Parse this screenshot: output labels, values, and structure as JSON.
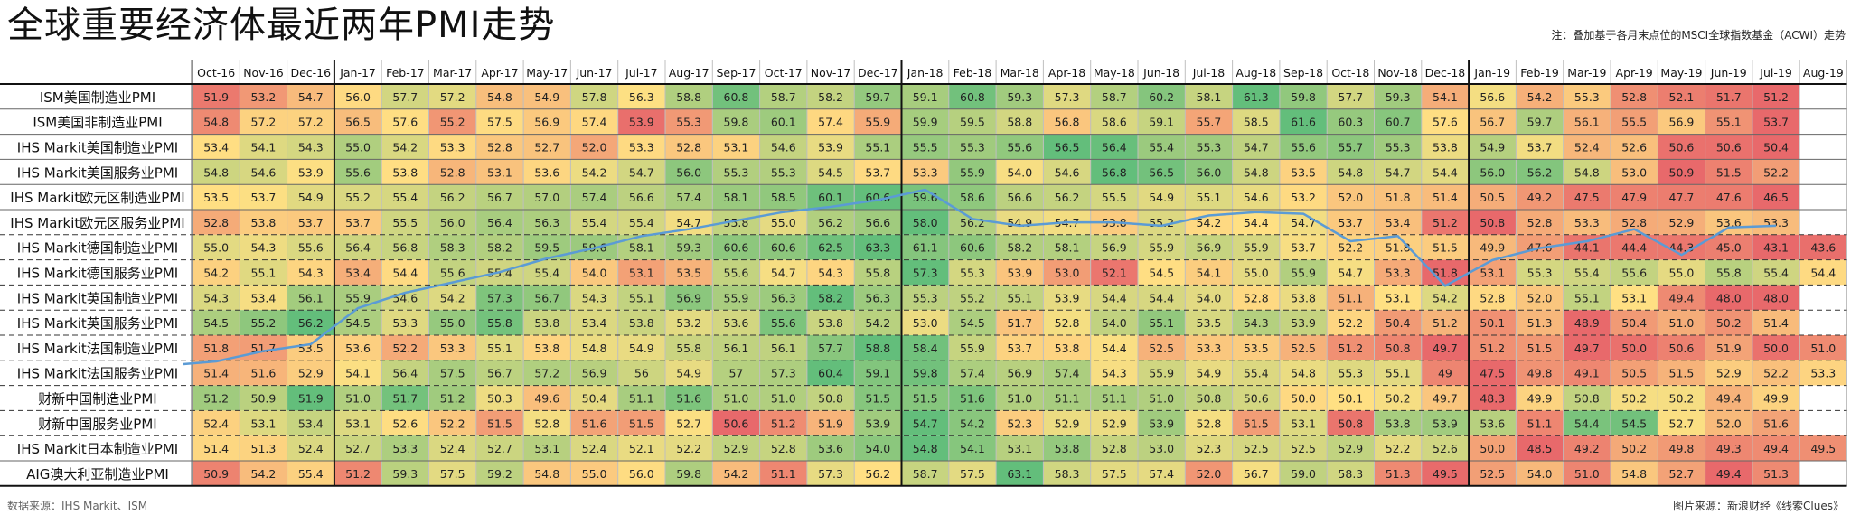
{
  "title": "全球重要经济体最近两年PMI走势",
  "note": "注：叠加基于各月末点位的MSCI全球指数基金（ACWI）走势",
  "source": "数据来源：IHS Markit、ISM",
  "credit": "图片来源：新浪财经《线索Clues》",
  "colors": {
    "low": "#e8696b",
    "mid": "#ffe083",
    "high": "#63be7b",
    "line": "#5b9bd5",
    "grid": "#bfbfbf"
  },
  "chart_data": {
    "type": "heatmap",
    "title": "全球重要经济体最近两年PMI走势",
    "columns": [
      "Oct-16",
      "Nov-16",
      "Dec-16",
      "Jan-17",
      "Feb-17",
      "Mar-17",
      "Apr-17",
      "May-17",
      "Jun-17",
      "Jul-17",
      "Aug-17",
      "Sep-17",
      "Oct-17",
      "Nov-17",
      "Dec-17",
      "Jan-18",
      "Feb-18",
      "Mar-18",
      "Apr-18",
      "May-18",
      "Jun-18",
      "Jul-18",
      "Aug-18",
      "Sep-18",
      "Oct-18",
      "Nov-18",
      "Dec-18",
      "Jan-19",
      "Feb-19",
      "Mar-19",
      "Apr-19",
      "May-19",
      "Jun-19",
      "Jul-19",
      "Aug-19"
    ],
    "rows": [
      {
        "name": "ISM美国制造业PMI",
        "values": [
          "51.9",
          "53.2",
          "54.7",
          "56.0",
          "57.7",
          "57.2",
          "54.8",
          "54.9",
          "57.8",
          "56.3",
          "58.8",
          "60.8",
          "58.7",
          "58.2",
          "59.7",
          "59.1",
          "60.8",
          "59.3",
          "57.3",
          "58.7",
          "60.2",
          "58.1",
          "61.3",
          "59.8",
          "57.7",
          "59.3",
          "54.1",
          "56.6",
          "54.2",
          "55.3",
          "52.8",
          "52.1",
          "51.7",
          "51.2",
          ""
        ]
      },
      {
        "name": "ISM美国非制造业PMI",
        "values": [
          "54.8",
          "57.2",
          "57.2",
          "56.5",
          "57.6",
          "55.2",
          "57.5",
          "56.9",
          "57.4",
          "53.9",
          "55.3",
          "59.8",
          "60.1",
          "57.4",
          "55.9",
          "59.9",
          "59.5",
          "58.8",
          "56.8",
          "58.6",
          "59.1",
          "55.7",
          "58.5",
          "61.6",
          "60.3",
          "60.7",
          "57.6",
          "56.7",
          "59.7",
          "56.1",
          "55.5",
          "56.9",
          "55.1",
          "53.7",
          ""
        ]
      },
      {
        "name": "IHS Markit美国制造业PMI",
        "values": [
          "53.4",
          "54.1",
          "54.3",
          "55.0",
          "54.2",
          "53.3",
          "52.8",
          "52.7",
          "52.0",
          "53.3",
          "52.8",
          "53.1",
          "54.6",
          "53.9",
          "55.1",
          "55.5",
          "55.3",
          "55.6",
          "56.5",
          "56.4",
          "55.4",
          "55.3",
          "54.7",
          "55.6",
          "55.7",
          "55.3",
          "53.8",
          "54.9",
          "53.7",
          "52.4",
          "52.6",
          "50.6",
          "50.6",
          "50.4",
          ""
        ]
      },
      {
        "name": "IHS Markit美国服务业PMI",
        "values": [
          "54.8",
          "54.6",
          "53.9",
          "55.6",
          "53.8",
          "52.8",
          "53.1",
          "53.6",
          "54.2",
          "54.7",
          "56.0",
          "55.3",
          "55.3",
          "54.5",
          "53.7",
          "53.3",
          "55.9",
          "54.0",
          "54.6",
          "56.8",
          "56.5",
          "56.0",
          "54.8",
          "53.5",
          "54.8",
          "54.7",
          "54.4",
          "56.0",
          "56.2",
          "54.8",
          "53.0",
          "50.9",
          "51.5",
          "52.2",
          ""
        ]
      },
      {
        "name": "IHS Markit欧元区制造业PMI",
        "values": [
          "53.5",
          "53.7",
          "54.9",
          "55.2",
          "55.4",
          "56.2",
          "56.7",
          "57.0",
          "57.4",
          "56.6",
          "57.4",
          "58.1",
          "58.5",
          "60.1",
          "60.6",
          "59.6",
          "58.6",
          "56.6",
          "56.2",
          "55.5",
          "54.9",
          "55.1",
          "54.6",
          "53.2",
          "52.0",
          "51.8",
          "51.4",
          "50.5",
          "49.2",
          "47.5",
          "47.9",
          "47.7",
          "47.6",
          "46.5",
          ""
        ]
      },
      {
        "name": "IHS Markit欧元区服务业PMI",
        "values": [
          "52.8",
          "53.8",
          "53.7",
          "53.7",
          "55.5",
          "56.0",
          "56.4",
          "56.3",
          "55.4",
          "55.4",
          "54.7",
          "55.8",
          "55.0",
          "56.2",
          "56.6",
          "58.0",
          "56.2",
          "54.9",
          "54.7",
          "53.8",
          "55.2",
          "54.2",
          "54.4",
          "54.7",
          "53.7",
          "53.4",
          "51.2",
          "50.8",
          "52.8",
          "53.3",
          "52.8",
          "52.9",
          "53.6",
          "53.3",
          ""
        ]
      },
      {
        "name": "IHS Markit德国制造业PMI",
        "values": [
          "55.0",
          "54.3",
          "55.6",
          "56.4",
          "56.8",
          "58.3",
          "58.2",
          "59.5",
          "59.6",
          "58.1",
          "59.3",
          "60.6",
          "60.6",
          "62.5",
          "63.3",
          "61.1",
          "60.6",
          "58.2",
          "58.1",
          "56.9",
          "55.9",
          "56.9",
          "55.9",
          "53.7",
          "52.2",
          "51.8",
          "51.5",
          "49.9",
          "47.6",
          "44.1",
          "44.4",
          "44.3",
          "45.0",
          "43.1",
          "43.6"
        ]
      },
      {
        "name": "IHS Markit德国服务业PMI",
        "values": [
          "54.2",
          "55.1",
          "54.3",
          "53.4",
          "54.4",
          "55.6",
          "55.4",
          "55.4",
          "54.0",
          "53.1",
          "53.5",
          "55.6",
          "54.7",
          "54.3",
          "55.8",
          "57.3",
          "55.3",
          "53.9",
          "53.0",
          "52.1",
          "54.5",
          "54.1",
          "55.0",
          "55.9",
          "54.7",
          "53.3",
          "51.8",
          "53.1",
          "55.3",
          "55.4",
          "55.6",
          "55.0",
          "55.8",
          "55.4",
          "54.4"
        ]
      },
      {
        "name": "IHS Markit英国制造业PMI",
        "values": [
          "54.3",
          "53.4",
          "56.1",
          "55.9",
          "54.6",
          "54.2",
          "57.3",
          "56.7",
          "54.3",
          "55.1",
          "56.9",
          "55.9",
          "56.3",
          "58.2",
          "56.3",
          "55.3",
          "55.2",
          "55.1",
          "53.9",
          "54.4",
          "54.4",
          "54.0",
          "52.8",
          "53.8",
          "51.1",
          "53.1",
          "54.2",
          "52.8",
          "52.0",
          "55.1",
          "53.1",
          "49.4",
          "48.0",
          "48.0",
          ""
        ]
      },
      {
        "name": "IHS Markit英国服务业PMI",
        "values": [
          "54.5",
          "55.2",
          "56.2",
          "54.5",
          "53.3",
          "55.0",
          "55.8",
          "53.8",
          "53.4",
          "53.8",
          "53.2",
          "53.6",
          "55.6",
          "53.8",
          "54.2",
          "53.0",
          "54.5",
          "51.7",
          "52.8",
          "54.0",
          "55.1",
          "53.5",
          "54.3",
          "53.9",
          "52.2",
          "50.4",
          "51.2",
          "50.1",
          "51.3",
          "48.9",
          "50.4",
          "51.0",
          "50.2",
          "51.4",
          ""
        ]
      },
      {
        "name": "IHS Markit法国制造业PMI",
        "values": [
          "51.8",
          "51.7",
          "53.5",
          "53.6",
          "52.2",
          "53.3",
          "55.1",
          "53.8",
          "54.8",
          "54.9",
          "55.8",
          "56.1",
          "56.1",
          "57.7",
          "58.8",
          "58.4",
          "55.9",
          "53.7",
          "53.8",
          "54.4",
          "52.5",
          "53.3",
          "53.5",
          "52.5",
          "51.2",
          "50.8",
          "49.7",
          "51.2",
          "51.5",
          "49.7",
          "50.0",
          "50.6",
          "51.9",
          "50.0",
          "51.0"
        ]
      },
      {
        "name": "IHS Markit法国服务业PMI",
        "values": [
          "51.4",
          "51.6",
          "52.9",
          "54.1",
          "56.4",
          "57.5",
          "56.7",
          "57.2",
          "56.9",
          "56",
          "54.9",
          "57",
          "57.3",
          "60.4",
          "59.1",
          "59.8",
          "57.4",
          "56.9",
          "57.4",
          "54.3",
          "55.9",
          "54.9",
          "55.4",
          "54.8",
          "55.3",
          "55.1",
          "49",
          "47.5",
          "49.8",
          "49.1",
          "50.5",
          "51.5",
          "52.9",
          "52.2",
          "53.3"
        ]
      },
      {
        "name": "财新中国制造业PMI",
        "values": [
          "51.2",
          "50.9",
          "51.9",
          "51.0",
          "51.7",
          "51.2",
          "50.3",
          "49.6",
          "50.4",
          "51.1",
          "51.6",
          "51.0",
          "51.0",
          "50.8",
          "51.5",
          "51.5",
          "51.6",
          "51.0",
          "51.1",
          "51.1",
          "51.0",
          "50.8",
          "50.6",
          "50.0",
          "50.1",
          "50.2",
          "49.7",
          "48.3",
          "49.9",
          "50.8",
          "50.2",
          "50.2",
          "49.4",
          "49.9",
          ""
        ]
      },
      {
        "name": "财新中国服务业PMI",
        "values": [
          "52.4",
          "53.1",
          "53.4",
          "53.1",
          "52.6",
          "52.2",
          "51.5",
          "52.8",
          "51.6",
          "51.5",
          "52.7",
          "50.6",
          "51.2",
          "51.9",
          "53.9",
          "54.7",
          "54.2",
          "52.3",
          "52.9",
          "52.9",
          "53.9",
          "52.8",
          "51.5",
          "53.1",
          "50.8",
          "53.8",
          "53.9",
          "53.6",
          "51.1",
          "54.4",
          "54.5",
          "52.7",
          "52.0",
          "51.6",
          ""
        ]
      },
      {
        "name": "IHS Markit日本制造业PMI",
        "values": [
          "51.4",
          "51.3",
          "52.4",
          "52.7",
          "53.3",
          "52.4",
          "52.7",
          "53.1",
          "52.4",
          "52.1",
          "52.2",
          "52.9",
          "52.8",
          "53.6",
          "54.0",
          "54.8",
          "54.1",
          "53.1",
          "53.8",
          "52.8",
          "53.0",
          "52.3",
          "52.5",
          "52.5",
          "52.9",
          "52.2",
          "52.6",
          "50.0",
          "48.5",
          "49.2",
          "50.2",
          "49.8",
          "49.3",
          "49.4",
          "49.5"
        ]
      },
      {
        "name": "AIG澳大利亚制造业PMI",
        "values": [
          "50.9",
          "54.2",
          "55.4",
          "51.2",
          "59.3",
          "57.5",
          "59.2",
          "54.8",
          "55.0",
          "56.0",
          "59.8",
          "54.2",
          "51.1",
          "57.3",
          "56.2",
          "58.7",
          "57.5",
          "63.1",
          "58.3",
          "57.5",
          "57.4",
          "52.0",
          "56.7",
          "59.0",
          "58.3",
          "51.3",
          "49.5",
          "52.5",
          "54.0",
          "51.0",
          "54.8",
          "52.7",
          "49.4",
          "51.3",
          ""
        ]
      }
    ],
    "overlay": {
      "series_note": "MSCI ACWI month-end trend (unlabeled, relative)",
      "values": [
        0.0,
        0.06,
        0.1,
        0.31,
        0.4,
        0.46,
        0.52,
        0.6,
        0.66,
        0.73,
        0.77,
        0.82,
        0.87,
        0.9,
        0.94,
        1.0,
        0.83,
        0.79,
        0.81,
        0.81,
        0.79,
        0.85,
        0.87,
        0.86,
        0.7,
        0.73,
        0.44,
        0.59,
        0.66,
        0.7,
        0.77,
        0.62,
        0.78,
        0.79
      ]
    }
  }
}
